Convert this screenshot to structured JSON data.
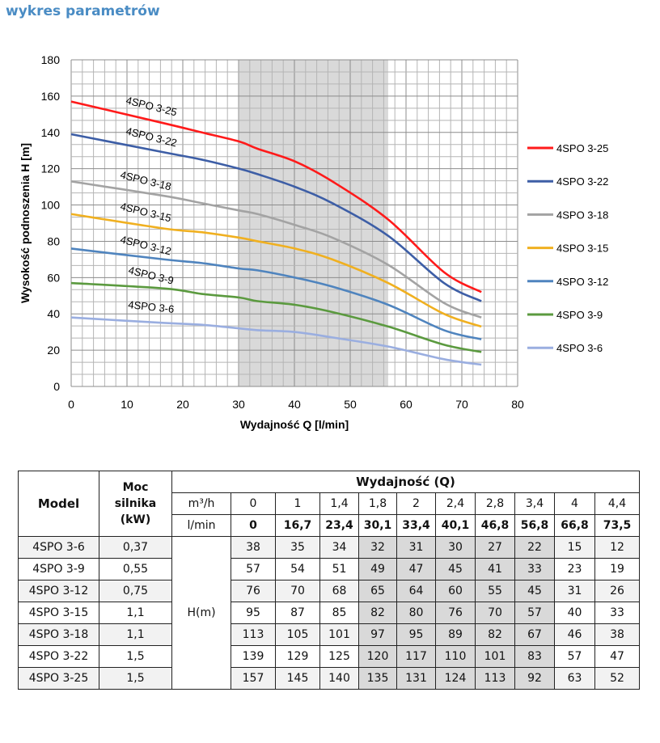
{
  "title": "wykres parametrów",
  "chart_data": {
    "type": "line",
    "xlabel": "Wydajność Q [l/min]",
    "ylabel": "Wysokość podnoszenia H [m]",
    "xlim": [
      0,
      80
    ],
    "ylim": [
      0,
      180
    ],
    "xticks": [
      "0",
      "10",
      "20",
      "30",
      "40",
      "50",
      "60",
      "70",
      "80"
    ],
    "yticks": [
      "0",
      "20",
      "40",
      "60",
      "80",
      "100",
      "120",
      "140",
      "160",
      "180"
    ],
    "grid": true,
    "shaded_range_x": [
      30.1,
      56.8
    ],
    "legend_position": "right",
    "x": [
      0,
      16.7,
      23.4,
      30.1,
      33.4,
      40.1,
      46.8,
      56.8,
      66.8,
      73.5
    ],
    "series": [
      {
        "name": "4SPO 3-25",
        "color": "#ff1a1a",
        "values": [
          157,
          145,
          140,
          135,
          131,
          124,
          113,
          92,
          63,
          52
        ]
      },
      {
        "name": "4SPO 3-22",
        "color": "#3d5ea6",
        "values": [
          139,
          129,
          125,
          120,
          117,
          110,
          101,
          83,
          57,
          47
        ]
      },
      {
        "name": "4SPO 3-18",
        "color": "#a3a3a3",
        "values": [
          113,
          105,
          101,
          97,
          95,
          89,
          82,
          67,
          46,
          38
        ]
      },
      {
        "name": "4SPO 3-15",
        "color": "#f0b020",
        "values": [
          95,
          87,
          85,
          82,
          80,
          76,
          70,
          57,
          40,
          33
        ]
      },
      {
        "name": "4SPO 3-12",
        "color": "#4f84be",
        "values": [
          76,
          70,
          68,
          65,
          64,
          60,
          55,
          45,
          31,
          26
        ]
      },
      {
        "name": "4SPO 3-9",
        "color": "#5b9a3f",
        "values": [
          57,
          54,
          51,
          49,
          47,
          45,
          41,
          33,
          23,
          19
        ]
      },
      {
        "name": "4SPO 3-6",
        "color": "#9aaee0",
        "values": [
          38,
          35,
          34,
          32,
          31,
          30,
          27,
          22,
          15,
          12
        ]
      }
    ]
  },
  "table": {
    "col_model": "Model",
    "col_power": [
      "Moc",
      "silnika",
      "(kW)"
    ],
    "col_flow": "Wydajność (Q)",
    "unit_m3h": "m³/h",
    "unit_lmin": "l/min",
    "unit_h": "H(m)",
    "m3h": [
      "0",
      "1",
      "1,4",
      "1,8",
      "2",
      "2,4",
      "2,8",
      "3,4",
      "4",
      "4,4"
    ],
    "lmin": [
      "0",
      "16,7",
      "23,4",
      "30,1",
      "33,4",
      "40,1",
      "46,8",
      "56,8",
      "66,8",
      "73,5"
    ],
    "rows": [
      {
        "model": "4SPO 3-6",
        "power": "0,37",
        "h": [
          "38",
          "35",
          "34",
          "32",
          "31",
          "30",
          "27",
          "22",
          "15",
          "12"
        ]
      },
      {
        "model": "4SPO 3-9",
        "power": "0,55",
        "h": [
          "57",
          "54",
          "51",
          "49",
          "47",
          "45",
          "41",
          "33",
          "23",
          "19"
        ]
      },
      {
        "model": "4SPO 3-12",
        "power": "0,75",
        "h": [
          "76",
          "70",
          "68",
          "65",
          "64",
          "60",
          "55",
          "45",
          "31",
          "26"
        ]
      },
      {
        "model": "4SPO 3-15",
        "power": "1,1",
        "h": [
          "95",
          "87",
          "85",
          "82",
          "80",
          "76",
          "70",
          "57",
          "40",
          "33"
        ]
      },
      {
        "model": "4SPO 3-18",
        "power": "1,1",
        "h": [
          "113",
          "105",
          "101",
          "97",
          "95",
          "89",
          "82",
          "67",
          "46",
          "38"
        ]
      },
      {
        "model": "4SPO 3-22",
        "power": "1,5",
        "h": [
          "139",
          "129",
          "125",
          "120",
          "117",
          "110",
          "101",
          "83",
          "57",
          "47"
        ]
      },
      {
        "model": "4SPO 3-25",
        "power": "1,5",
        "h": [
          "157",
          "145",
          "140",
          "135",
          "131",
          "124",
          "113",
          "92",
          "63",
          "52"
        ]
      }
    ]
  }
}
